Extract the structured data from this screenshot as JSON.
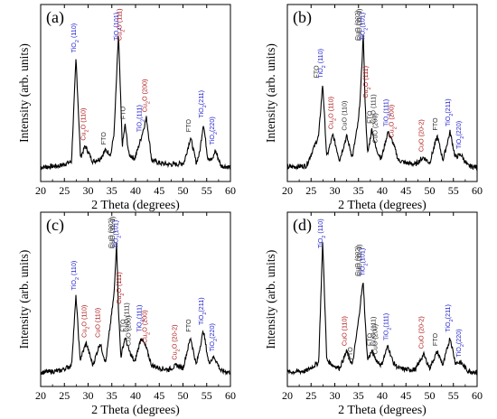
{
  "colors": {
    "tio2": "#2222cc",
    "cu2o": "#b01818",
    "cuo": "#333333",
    "fto": "#222222",
    "trace": "#000000"
  },
  "chart_data": [
    {
      "type": "line",
      "panel": "(a)",
      "xlabel": "2 Theta (degrees)",
      "ylabel": "Intensity (arb. units)",
      "xlim": [
        20,
        60
      ],
      "xticks": [
        20,
        25,
        30,
        35,
        40,
        45,
        50,
        55,
        60
      ],
      "series": [
        {
          "x": [
            20,
            24,
            26.5,
            27.45,
            28.4,
            29.4,
            31,
            32.5,
            33.7,
            34.8,
            35.5,
            36.4,
            37.2,
            37.8,
            38.6,
            39.8,
            40.5,
            41.2,
            42.3,
            43.4,
            45,
            47,
            48.5,
            50.2,
            51.6,
            52.8,
            53.5,
            54.3,
            55.2,
            56.2,
            56.8,
            58,
            60
          ],
          "y": [
            0.05,
            0.06,
            0.09,
            0.82,
            0.12,
            0.2,
            0.09,
            0.11,
            0.17,
            0.14,
            0.3,
            0.99,
            0.2,
            0.35,
            0.14,
            0.11,
            0.18,
            0.26,
            0.4,
            0.1,
            0.08,
            0.07,
            0.07,
            0.08,
            0.26,
            0.08,
            0.15,
            0.36,
            0.12,
            0.1,
            0.17,
            0.06,
            0.05
          ]
        }
      ],
      "annotations": [
        {
          "text": "TiO2 (110)",
          "x": 27.45,
          "phase": "tio2"
        },
        {
          "text": "Cu2O (110)",
          "x": 29.4,
          "phase": "cu2o"
        },
        {
          "text": "FTO",
          "x": 33.7,
          "phase": "fto"
        },
        {
          "text": "TiO2(101)",
          "x": 36.4,
          "phase": "tio2"
        },
        {
          "text": "Cu2O (111)",
          "x": 37.0,
          "phase": "cu2o"
        },
        {
          "text": "FTO",
          "x": 37.8,
          "phase": "fto"
        },
        {
          "text": "TiO2(111)",
          "x": 41.2,
          "phase": "tio2"
        },
        {
          "text": "Cu2O (200)",
          "x": 42.4,
          "phase": "cu2o"
        },
        {
          "text": "FTO",
          "x": 51.6,
          "phase": "fto"
        },
        {
          "text": "TiO2(211)",
          "x": 54.3,
          "phase": "tio2"
        },
        {
          "text": "TiO2(220)",
          "x": 56.6,
          "phase": "tio2"
        }
      ]
    },
    {
      "type": "line",
      "panel": "(b)",
      "xlabel": "2 Theta (degrees)",
      "ylabel": "Intensity (arb. units)",
      "xlim": [
        20,
        60
      ],
      "xticks": [
        20,
        25,
        30,
        35,
        40,
        45,
        50,
        55,
        60
      ],
      "series": [
        {
          "x": [
            20,
            24,
            26.6,
            27.45,
            28.3,
            29.6,
            31,
            32.5,
            33.7,
            35.0,
            35.5,
            36.0,
            36.4,
            36.9,
            37.8,
            38.7,
            39.8,
            41.2,
            42.3,
            43.4,
            45,
            47,
            48.7,
            50,
            51.6,
            52.8,
            54.3,
            55.4,
            56.6,
            58,
            60
          ],
          "y": [
            0.05,
            0.06,
            0.27,
            0.64,
            0.12,
            0.28,
            0.1,
            0.27,
            0.12,
            0.38,
            0.62,
            0.99,
            0.5,
            0.14,
            0.32,
            0.18,
            0.11,
            0.3,
            0.22,
            0.1,
            0.08,
            0.07,
            0.12,
            0.08,
            0.27,
            0.1,
            0.3,
            0.12,
            0.14,
            0.06,
            0.05
          ]
        }
      ],
      "annotations": [
        {
          "text": "FTO",
          "x": 26.6,
          "phase": "fto"
        },
        {
          "text": "TiO2 (110)",
          "x": 27.45,
          "phase": "tio2"
        },
        {
          "text": "Cu2O (110)",
          "x": 29.6,
          "phase": "cu2o"
        },
        {
          "text": "CuO (110)",
          "x": 32.5,
          "phase": "cuo"
        },
        {
          "text": "CuO (002)",
          "x": 35.2,
          "phase": "cuo"
        },
        {
          "text": "CuO (11-1)",
          "x": 35.6,
          "phase": "cuo"
        },
        {
          "text": "TiO2(101)",
          "x": 36.3,
          "phase": "tio2"
        },
        {
          "text": "Cu2O (111)",
          "x": 37.0,
          "phase": "cu2o"
        },
        {
          "text": "FTO",
          "x": 37.8,
          "phase": "fto"
        },
        {
          "text": "CuO (111)",
          "x": 38.6,
          "phase": "cuo"
        },
        {
          "text": "CuO (200)",
          "x": 39.0,
          "phase": "cuo"
        },
        {
          "text": "TiO2(111)",
          "x": 41.2,
          "phase": "tio2"
        },
        {
          "text": "Cu2O (200)",
          "x": 42.4,
          "phase": "cu2o"
        },
        {
          "text": "CuO (20-2)",
          "x": 48.7,
          "phase": "cu2o"
        },
        {
          "text": "FTO",
          "x": 51.6,
          "phase": "fto"
        },
        {
          "text": "TiO2(211)",
          "x": 54.3,
          "phase": "tio2"
        },
        {
          "text": "TiO2(220)",
          "x": 56.6,
          "phase": "tio2"
        }
      ]
    },
    {
      "type": "line",
      "panel": "(c)",
      "xlabel": "2 Theta (degrees)",
      "ylabel": "Intensity (arb. units)",
      "xlim": [
        20,
        60
      ],
      "xticks": [
        20,
        25,
        30,
        35,
        40,
        45,
        50,
        55,
        60
      ],
      "series": [
        {
          "x": [
            20,
            24,
            26.5,
            27.45,
            28.3,
            29.6,
            31,
            32.5,
            33.7,
            35.0,
            35.5,
            36.0,
            36.4,
            36.9,
            37.8,
            38.7,
            39.8,
            41.2,
            42.3,
            43.4,
            45,
            47,
            48.7,
            50,
            51.6,
            52.8,
            54.3,
            55.4,
            56.6,
            58,
            60
          ],
          "y": [
            0.05,
            0.06,
            0.1,
            0.6,
            0.14,
            0.26,
            0.1,
            0.26,
            0.12,
            0.48,
            0.62,
            0.99,
            0.5,
            0.16,
            0.3,
            0.2,
            0.12,
            0.3,
            0.22,
            0.1,
            0.08,
            0.07,
            0.1,
            0.08,
            0.3,
            0.1,
            0.35,
            0.12,
            0.16,
            0.06,
            0.05
          ]
        }
      ],
      "annotations": [
        {
          "text": "TiO2 (110)",
          "x": 27.45,
          "phase": "tio2"
        },
        {
          "text": "Cu2O (110)",
          "x": 29.6,
          "phase": "cu2o"
        },
        {
          "text": "CuO (110)",
          "x": 32.5,
          "phase": "cu2o"
        },
        {
          "text": "CuO (002)",
          "x": 35.2,
          "phase": "cuo"
        },
        {
          "text": "CuO (11-1)",
          "x": 35.6,
          "phase": "cuo"
        },
        {
          "text": "TiO2(101)",
          "x": 36.3,
          "phase": "tio2"
        },
        {
          "text": "Cu2O (111)",
          "x": 37.0,
          "phase": "cu2o"
        },
        {
          "text": "FTO",
          "x": 37.8,
          "phase": "fto"
        },
        {
          "text": "CuO (111)",
          "x": 38.6,
          "phase": "cuo"
        },
        {
          "text": "CuO (200)",
          "x": 39.0,
          "phase": "cuo"
        },
        {
          "text": "TiO2(111)",
          "x": 41.2,
          "phase": "tio2"
        },
        {
          "text": "Cu2O (200)",
          "x": 42.4,
          "phase": "cu2o"
        },
        {
          "text": "Cu2O (20-2)",
          "x": 48.7,
          "phase": "cu2o"
        },
        {
          "text": "FTO",
          "x": 51.6,
          "phase": "fto"
        },
        {
          "text": "TiO2(211)",
          "x": 54.3,
          "phase": "tio2"
        },
        {
          "text": "TiO2(220)",
          "x": 56.6,
          "phase": "tio2"
        }
      ]
    },
    {
      "type": "line",
      "panel": "(d)",
      "xlabel": "2 Theta (degrees)",
      "ylabel": "Intensity (arb. units)",
      "xlim": [
        20,
        60
      ],
      "xticks": [
        20,
        25,
        30,
        35,
        40,
        45,
        50,
        55,
        60
      ],
      "series": [
        {
          "x": [
            20,
            24,
            26.6,
            27.45,
            28.3,
            29.6,
            31,
            32.5,
            33.7,
            35.0,
            35.5,
            36.0,
            36.4,
            36.9,
            37.8,
            38.7,
            39.8,
            41.2,
            42.3,
            43.4,
            45,
            47,
            48.7,
            50,
            51.6,
            52.8,
            54.3,
            55.4,
            56.6,
            58,
            60
          ],
          "y": [
            0.05,
            0.06,
            0.12,
            0.99,
            0.14,
            0.1,
            0.08,
            0.2,
            0.1,
            0.42,
            0.58,
            0.7,
            0.42,
            0.14,
            0.2,
            0.14,
            0.1,
            0.24,
            0.12,
            0.08,
            0.07,
            0.07,
            0.18,
            0.08,
            0.2,
            0.1,
            0.3,
            0.12,
            0.12,
            0.06,
            0.05
          ]
        }
      ],
      "annotations": [
        {
          "text": "TiO2 (110)",
          "x": 27.45,
          "phase": "tio2"
        },
        {
          "text": "CuO (110)",
          "x": 32.5,
          "phase": "cu2o"
        },
        {
          "text": "FTO",
          "x": 33.7,
          "phase": "fto"
        },
        {
          "text": "CuO (002)",
          "x": 35.2,
          "phase": "cuo"
        },
        {
          "text": "CuO (11-1)",
          "x": 35.6,
          "phase": "cuo"
        },
        {
          "text": "TiO2(101)",
          "x": 36.3,
          "phase": "tio2"
        },
        {
          "text": "FTO",
          "x": 37.8,
          "phase": "fto"
        },
        {
          "text": "CuO (111)",
          "x": 38.6,
          "phase": "cuo"
        },
        {
          "text": "CuO (200)",
          "x": 39.0,
          "phase": "cuo"
        },
        {
          "text": "TiO2(111)",
          "x": 41.2,
          "phase": "tio2"
        },
        {
          "text": "CuO (20-2)",
          "x": 48.7,
          "phase": "cu2o"
        },
        {
          "text": "FTO",
          "x": 51.6,
          "phase": "fto"
        },
        {
          "text": "TiO2(211)",
          "x": 54.3,
          "phase": "tio2"
        },
        {
          "text": "TiO2(220)",
          "x": 56.6,
          "phase": "tio2"
        }
      ]
    }
  ]
}
